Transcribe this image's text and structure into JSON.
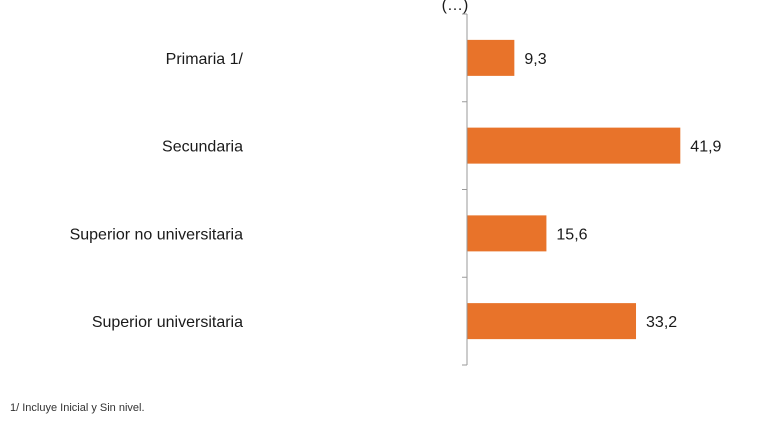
{
  "chart_data": {
    "type": "bar",
    "orientation": "horizontal",
    "title": "(…)",
    "categories": [
      "Primaria  1/",
      "Secundaria",
      "Superior no universitaria",
      "Superior universitaria"
    ],
    "values": [
      9.3,
      41.9,
      15.6,
      33.2
    ],
    "value_labels": [
      "9,3",
      "41,9",
      "15,6",
      "33,2"
    ],
    "xlim": [
      0,
      55
    ],
    "grid": false,
    "legend": "none",
    "colors": {
      "bar": "#E8732A",
      "axis": "#9a9a9a"
    }
  },
  "footnote": "1/ Incluye Inicial y Sin nivel."
}
